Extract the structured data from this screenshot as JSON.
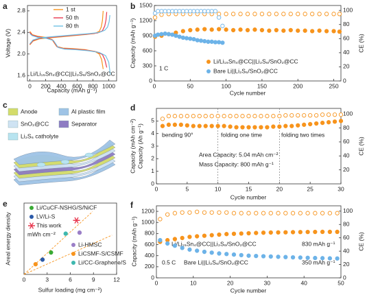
{
  "chart_data": [
    {
      "panel": "a",
      "type": "line",
      "x_label": "Capacity (mAh g⁻¹)",
      "y_label": "Voltage (V)",
      "xlim": [
        -30,
        1100
      ],
      "xticks": [
        0,
        200,
        400,
        600,
        800,
        1000
      ],
      "ylim": [
        1.5,
        2.9
      ],
      "yticks": [
        1.6,
        {
          "value": 2,
          "label": "2.0"
        },
        2.4,
        2.8
      ],
      "annotations": [
        "Li/Li₁₅Sn₄@CC||Li₂S₆/SnO₂@CC"
      ],
      "series": [
        {
          "name": "1 st",
          "color": "#f7941d",
          "x": [
            0,
            30,
            100,
            200,
            280,
            340,
            420,
            550,
            700,
            820,
            880,
            910,
            930,
            null,
            0,
            40,
            120,
            250,
            400,
            550,
            700,
            820,
            880,
            905,
            920,
            930
          ],
          "values": [
            2.42,
            2.36,
            2.33,
            2.31,
            2.27,
            2.14,
            2.11,
            2.1,
            2.08,
            2.05,
            2.0,
            1.9,
            1.72,
            null,
            2.17,
            2.24,
            2.28,
            2.3,
            2.32,
            2.34,
            2.36,
            2.38,
            2.42,
            2.5,
            2.62,
            2.8
          ]
        },
        {
          "name": "50 th",
          "color": "#e8384f",
          "x": [
            0,
            30,
            100,
            200,
            290,
            350,
            430,
            560,
            720,
            850,
            920,
            950,
            975,
            null,
            0,
            40,
            120,
            260,
            420,
            580,
            740,
            860,
            920,
            950,
            965,
            975
          ],
          "values": [
            2.4,
            2.35,
            2.32,
            2.3,
            2.26,
            2.13,
            2.1,
            2.09,
            2.07,
            2.04,
            1.99,
            1.9,
            1.75,
            null,
            2.18,
            2.25,
            2.29,
            2.31,
            2.33,
            2.35,
            2.37,
            2.39,
            2.43,
            2.52,
            2.63,
            2.78
          ]
        },
        {
          "name": "80 th",
          "color": "#6ec1e4",
          "x": [
            0,
            30,
            100,
            210,
            300,
            360,
            440,
            580,
            740,
            880,
            960,
            1000,
            1020,
            null,
            0,
            40,
            130,
            270,
            440,
            600,
            760,
            880,
            950,
            985,
            1005,
            1015
          ],
          "values": [
            2.38,
            2.34,
            2.31,
            2.29,
            2.25,
            2.12,
            2.09,
            2.08,
            2.06,
            2.03,
            1.97,
            1.85,
            1.62,
            null,
            2.19,
            2.26,
            2.3,
            2.32,
            2.34,
            2.36,
            2.38,
            2.4,
            2.44,
            2.5,
            2.6,
            2.72
          ]
        }
      ]
    },
    {
      "panel": "b",
      "type": "scatter",
      "x_label": "Cycle number",
      "y_label": "Capacity (mAh g⁻¹)",
      "y2_label": "CE (%)",
      "xlim": [
        0,
        260
      ],
      "xticks": [
        0,
        50,
        100,
        150,
        200,
        250
      ],
      "ylim": [
        0,
        1500
      ],
      "yticks": [
        0,
        300,
        600,
        900,
        1200,
        1500
      ],
      "y2lim": [
        0,
        107
      ],
      "y2ticks": [
        0,
        20,
        40,
        60,
        80,
        100
      ],
      "annotations": [
        "1 C"
      ],
      "series": [
        {
          "name": "Li/Li₁₅Sn₄@CC||Li₂S₆/SnO₂@CC",
          "color": "#f7941d",
          "marker": "filled",
          "x": [
            1,
            10,
            20,
            30,
            40,
            50,
            60,
            70,
            80,
            90,
            100,
            110,
            120,
            130,
            140,
            150,
            160,
            170,
            180,
            190,
            200,
            210,
            220,
            230,
            240,
            250,
            258
          ],
          "values": [
            880,
            900,
            930,
            960,
            990,
            1010,
            1020,
            1030,
            1020,
            1030,
            1020,
            1010,
            1020,
            1010,
            1020,
            1010,
            1000,
            1010,
            1000,
            1010,
            1000,
            1000,
            990,
            1000,
            990,
            990,
            980
          ]
        },
        {
          "color": "#f7941d",
          "marker": "hollow",
          "axis": "y2",
          "x": [
            1,
            10,
            20,
            30,
            40,
            50,
            60,
            70,
            80,
            90,
            100,
            110,
            120,
            130,
            140,
            150,
            160,
            170,
            180,
            190,
            200,
            210,
            220,
            230,
            240,
            250,
            258
          ],
          "values": [
            90,
            94,
            95,
            95,
            95,
            95,
            95,
            95,
            95,
            95,
            95,
            95,
            95,
            95,
            95,
            95,
            95,
            95,
            95,
            95,
            95,
            95,
            95,
            95,
            95,
            95,
            95
          ]
        },
        {
          "name": "Bare Li||Li₂S₆/SnO₂@CC",
          "color": "#6db3e8",
          "marker": "filled",
          "x": [
            1,
            5,
            10,
            15,
            20,
            25,
            30,
            35,
            40,
            45,
            50,
            55,
            60,
            65,
            70,
            75,
            80,
            85,
            90,
            95
          ],
          "values": [
            900,
            920,
            930,
            940,
            930,
            920,
            900,
            880,
            860,
            850,
            840,
            830,
            810,
            800,
            790,
            780,
            780,
            770,
            770,
            760
          ]
        },
        {
          "color": "#6db3e8",
          "marker": "hollow",
          "axis": "y2",
          "x": [
            1,
            5,
            10,
            15,
            20,
            25,
            30,
            35,
            40,
            45,
            50,
            55,
            60,
            65,
            70,
            75,
            80,
            85,
            90,
            95
          ],
          "values": [
            96,
            99,
            99,
            99,
            99,
            99,
            99,
            99,
            99,
            99,
            99,
            99,
            99,
            99,
            99,
            99,
            99,
            99,
            90,
            78
          ]
        }
      ]
    },
    {
      "panel": "c",
      "type": "diagram",
      "labels": [
        "Anode",
        "Al plastic film",
        "SnO₂@CC",
        "Separator",
        "Li₂S₆ catholyte"
      ],
      "colors": [
        "#d4dc6a",
        "#9fc4e6",
        "#cfe3f3",
        "#8e7cc3",
        "#b8e4f0"
      ]
    },
    {
      "panel": "d",
      "type": "scatter",
      "x_label": "Cycle number",
      "y_label": "Capacity (mAh cm⁻²)",
      "y_label_2": "Capacity (Ah g⁻¹)",
      "y2_label": "CE (%)",
      "xlim": [
        0,
        30
      ],
      "xticks": [
        0,
        5,
        10,
        15,
        20,
        25,
        30
      ],
      "ylim": [
        0,
        6
      ],
      "yticks": [
        0,
        1,
        2,
        3,
        4,
        5
      ],
      "y2lim": [
        0,
        108
      ],
      "y2ticks": [
        20,
        40,
        60,
        80,
        100
      ],
      "dividers": [
        10,
        20
      ],
      "annotations": [
        "bending 90°",
        "folding one time",
        "folding two times",
        "Area Capacity: 5.04 mAh cm⁻²",
        "Mass Capacity: 800 mAh g⁻¹"
      ],
      "series": [
        {
          "color": "#f7941d",
          "marker": "filled",
          "x": [
            1,
            2,
            3,
            4,
            5,
            6,
            7,
            8,
            9,
            10,
            11,
            12,
            13,
            14,
            15,
            16,
            17,
            18,
            19,
            20,
            21,
            22,
            23,
            24,
            25,
            26,
            27,
            28,
            29,
            30
          ],
          "values": [
            4.6,
            4.7,
            4.7,
            4.7,
            4.65,
            4.6,
            4.6,
            4.6,
            4.6,
            4.6,
            4.6,
            4.55,
            4.5,
            4.5,
            4.5,
            4.5,
            4.5,
            4.5,
            4.55,
            4.55,
            4.6,
            4.6,
            4.65,
            4.7,
            4.75,
            4.8,
            4.85,
            4.9,
            4.95,
            5.0
          ]
        },
        {
          "color": "#f7941d",
          "marker": "hollow",
          "axis": "y2",
          "x": [
            1,
            2,
            3,
            4,
            5,
            6,
            7,
            8,
            9,
            10,
            11,
            12,
            13,
            14,
            15,
            16,
            17,
            18,
            19,
            20,
            21,
            22,
            23,
            24,
            25,
            26,
            27,
            28,
            29,
            30
          ],
          "values": [
            93,
            97,
            97,
            97,
            97,
            97,
            97,
            97,
            97,
            97,
            97,
            97,
            97,
            97,
            97,
            97,
            97,
            97,
            97,
            97,
            98,
            98,
            98,
            98,
            98,
            98,
            99,
            99,
            99,
            99
          ]
        }
      ]
    },
    {
      "panel": "e",
      "type": "scatter",
      "x_label": "Sulfur loading (mg cm⁻²)",
      "y_label": "Areal energy density",
      "y_unit": "mWh cm⁻²",
      "xlim": [
        0,
        12
      ],
      "xticks": [
        0,
        3,
        6,
        9,
        12
      ],
      "ylim": [
        0,
        14
      ],
      "series": [
        {
          "name": "Li/CuCF-NSHG/S/NiCF",
          "color": "#3aaa35",
          "marker": "filled",
          "x": [
            3.5
          ],
          "values": [
            4.3
          ]
        },
        {
          "name": "LV/Li-S",
          "color": "#2b5aa8",
          "marker": "filled",
          "x": [
            2.4
          ],
          "values": [
            2.9
          ]
        },
        {
          "name": "This work",
          "color": "#e8384f",
          "marker": "asterisk",
          "x": [
            6.8
          ],
          "values": [
            10.6
          ]
        },
        {
          "name": "Li-HMSC",
          "color": "#9b7fc7",
          "marker": "filled",
          "x": [
            7.2
          ],
          "values": [
            8.2
          ]
        },
        {
          "name": "LiCSMF-S/CSMF",
          "color": "#f7941d",
          "marker": "filled",
          "x": [
            1.5
          ],
          "values": [
            2.0
          ]
        },
        {
          "name": "Li/CC-Graphene/S",
          "color": "#3fb8af",
          "marker": "filled",
          "x": [
            5.4
          ],
          "values": [
            8.0
          ]
        }
      ]
    },
    {
      "panel": "f",
      "type": "scatter",
      "x_label": "Cycle number",
      "y_label": "Capacity (mAh g⁻¹)",
      "y2_label": "CE (%)",
      "xlim": [
        0,
        50
      ],
      "xticks": [
        0,
        10,
        20,
        30,
        40,
        50
      ],
      "ylim": [
        0,
        1300
      ],
      "yticks": [
        0,
        200,
        400,
        600,
        800,
        1000,
        1200
      ],
      "y2lim": [
        0,
        108
      ],
      "y2ticks": [
        0,
        20,
        40,
        60,
        80,
        100
      ],
      "annotations": [
        "830 mAh g⁻¹",
        "350 mAh g⁻¹",
        "0.5 C"
      ],
      "series": [
        {
          "name": "Li/Li₁₅Sn₄@CC||Li₂S₆/SnO₂@CC",
          "color": "#f7941d",
          "marker": "filled",
          "x": [
            1,
            3,
            5,
            7,
            9,
            11,
            13,
            15,
            17,
            19,
            21,
            23,
            25,
            27,
            29,
            31,
            33,
            35,
            37,
            39,
            41,
            43,
            45,
            47,
            49
          ],
          "values": [
            650,
            680,
            700,
            720,
            740,
            750,
            760,
            770,
            780,
            790,
            795,
            800,
            805,
            810,
            815,
            818,
            820,
            822,
            824,
            826,
            828,
            829,
            830,
            830,
            830
          ]
        },
        {
          "color": "#f7941d",
          "marker": "hollow",
          "axis": "y2",
          "x": [
            1,
            3,
            5,
            7,
            9,
            11,
            13,
            15,
            17,
            19,
            21,
            23,
            25,
            27,
            29,
            31,
            33,
            35,
            37,
            39,
            41,
            43,
            45,
            47,
            49
          ],
          "values": [
            88,
            95,
            97,
            98,
            98,
            99,
            98,
            98,
            98,
            98,
            97,
            97,
            97,
            97,
            97,
            97,
            97,
            97,
            97,
            97,
            97,
            97,
            97,
            97,
            97
          ]
        },
        {
          "name": "Bare Li||Li₂S₆/SnO₂@CC",
          "color": "#6db3e8",
          "marker": "filled",
          "x": [
            1,
            3,
            5,
            7,
            9,
            11,
            13,
            15,
            17,
            19,
            21,
            23,
            25,
            27,
            29,
            31,
            33,
            35,
            37,
            39,
            41,
            43,
            45,
            47,
            49
          ],
          "values": [
            680,
            620,
            580,
            540,
            510,
            490,
            470,
            455,
            440,
            430,
            420,
            410,
            400,
            395,
            390,
            385,
            380,
            375,
            370,
            366,
            362,
            358,
            355,
            352,
            350
          ]
        }
      ]
    }
  ]
}
